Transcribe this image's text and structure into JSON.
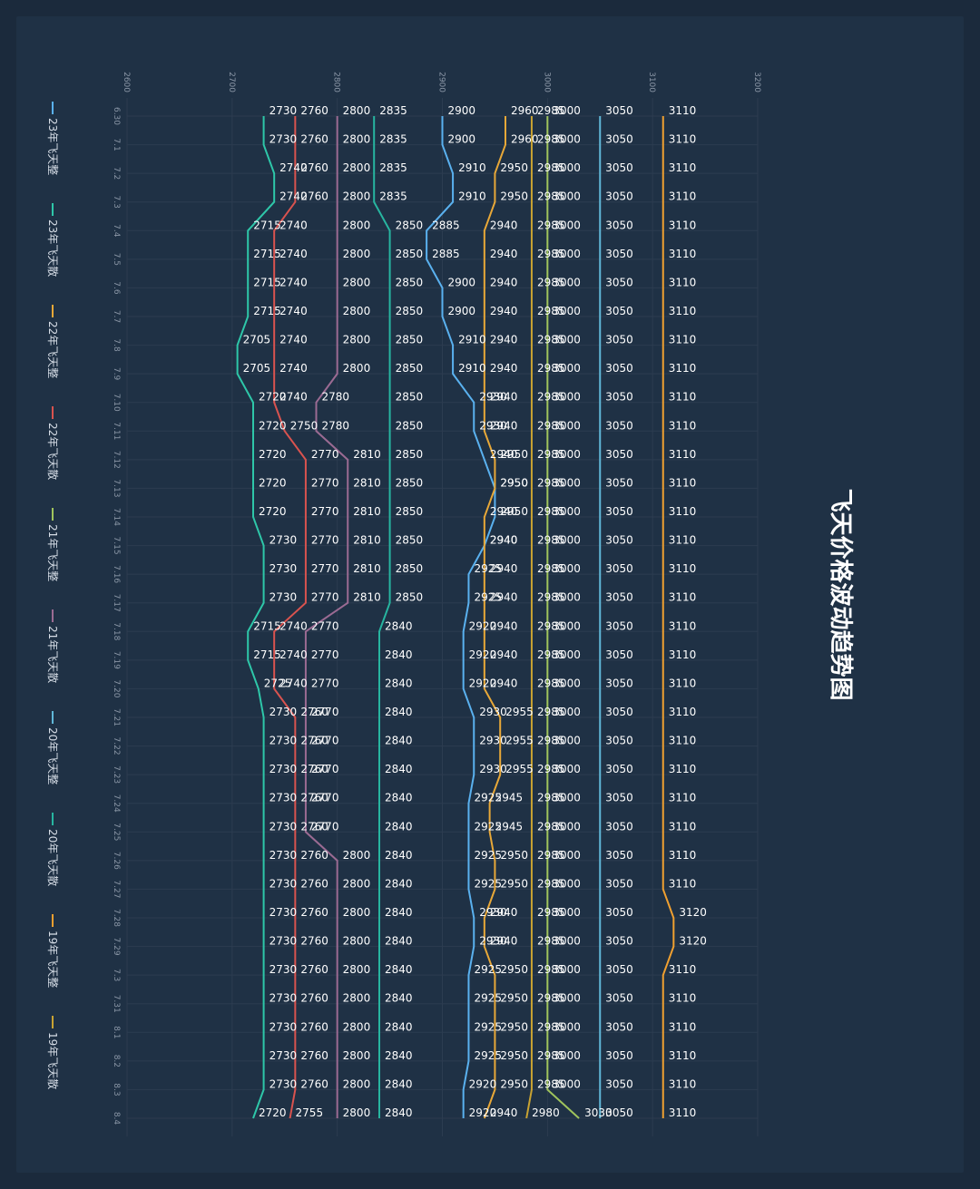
{
  "chart_data": {
    "type": "line",
    "title": "飞天价格波动趋势图",
    "x": [
      "6.30",
      "7.1",
      "7.2",
      "7.3",
      "7.4",
      "7.5",
      "7.6",
      "7.7",
      "7.8",
      "7.9",
      "7.10",
      "7.11",
      "7.12",
      "7.13",
      "7.14",
      "7.15",
      "7.16",
      "7.17",
      "7.18",
      "7.19",
      "7.20",
      "7.21",
      "7.22",
      "7.23",
      "7.24",
      "7.25",
      "7.26",
      "7.27",
      "7.28",
      "7.29",
      "7.3",
      "7.31",
      "8.1",
      "8.2",
      "8.3",
      "8.4"
    ],
    "ylim": [
      2600,
      3200
    ],
    "yticks": [
      2600,
      2700,
      2800,
      2900,
      3000,
      3100,
      3200
    ],
    "grid": true,
    "legend_position": "bottom",
    "series": [
      {
        "name": "23年飞天整",
        "color": "#5ab1ef",
        "values": [
          2900,
          2900,
          2910,
          2910,
          2885,
          2885,
          2900,
          2900,
          2910,
          2910,
          2930,
          2930,
          2940,
          2950,
          2950,
          2940,
          2925,
          2925,
          2920,
          2920,
          2920,
          2930,
          2930,
          2930,
          2925,
          2925,
          2925,
          2925,
          2930,
          2930,
          2925,
          2925,
          2925,
          2925,
          2920,
          2920
        ]
      },
      {
        "name": "23年飞天散",
        "color": "#2ec7a9",
        "values": [
          2730,
          2730,
          2740,
          2740,
          2715,
          2715,
          2715,
          2715,
          2705,
          2705,
          2720,
          2720,
          2720,
          2720,
          2720,
          2730,
          2730,
          2730,
          2715,
          2715,
          2725,
          2730,
          2730,
          2730,
          2730,
          2730,
          2730,
          2730,
          2730,
          2730,
          2730,
          2730,
          2730,
          2730,
          2730,
          2720
        ]
      },
      {
        "name": "22年飞天整",
        "color": "#e8a838",
        "values": [
          2960,
          2960,
          2950,
          2950,
          2940,
          2940,
          2940,
          2940,
          2940,
          2940,
          2940,
          2940,
          2950,
          2950,
          2940,
          2940,
          2940,
          2940,
          2940,
          2940,
          2940,
          2955,
          2955,
          2955,
          2945,
          2945,
          2950,
          2950,
          2940,
          2940,
          2950,
          2950,
          2950,
          2950,
          2950,
          2940
        ]
      },
      {
        "name": "22年飞天散",
        "color": "#d9534f",
        "values": [
          2760,
          2760,
          2760,
          2760,
          2740,
          2740,
          2740,
          2740,
          2740,
          2740,
          2740,
          2750,
          2770,
          2770,
          2770,
          2770,
          2770,
          2770,
          2740,
          2740,
          2740,
          2760,
          2760,
          2760,
          2760,
          2760,
          2760,
          2760,
          2760,
          2760,
          2760,
          2760,
          2760,
          2760,
          2760,
          2755
        ]
      },
      {
        "name": "21年飞天整",
        "color": "#a0c45c",
        "values": [
          3000,
          3000,
          3000,
          3000,
          3000,
          3000,
          3000,
          3000,
          3000,
          3000,
          3000,
          3000,
          3000,
          3000,
          3000,
          3000,
          3000,
          3000,
          3000,
          3000,
          3000,
          3000,
          3000,
          3000,
          3000,
          3000,
          3000,
          3000,
          3000,
          3000,
          3000,
          3000,
          3000,
          3000,
          3000,
          3030
        ]
      },
      {
        "name": "21年飞天散",
        "color": "#9b6b93",
        "values": [
          2800,
          2800,
          2800,
          2800,
          2800,
          2800,
          2800,
          2800,
          2800,
          2800,
          2780,
          2780,
          2810,
          2810,
          2810,
          2810,
          2810,
          2810,
          2770,
          2770,
          2770,
          2770,
          2770,
          2770,
          2770,
          2770,
          2800,
          2800,
          2800,
          2800,
          2800,
          2800,
          2800,
          2800,
          2800,
          2800
        ]
      },
      {
        "name": "20年飞天整",
        "color": "#60b8d8",
        "values": [
          3050,
          3050,
          3050,
          3050,
          3050,
          3050,
          3050,
          3050,
          3050,
          3050,
          3050,
          3050,
          3050,
          3050,
          3050,
          3050,
          3050,
          3050,
          3050,
          3050,
          3050,
          3050,
          3050,
          3050,
          3050,
          3050,
          3050,
          3050,
          3050,
          3050,
          3050,
          3050,
          3050,
          3050,
          3050,
          3050
        ]
      },
      {
        "name": "20年飞天散",
        "color": "#27b5a0",
        "values": [
          2835,
          2835,
          2835,
          2835,
          2850,
          2850,
          2850,
          2850,
          2850,
          2850,
          2850,
          2850,
          2850,
          2850,
          2850,
          2850,
          2850,
          2850,
          2840,
          2840,
          2840,
          2840,
          2840,
          2840,
          2840,
          2840,
          2840,
          2840,
          2840,
          2840,
          2840,
          2840,
          2840,
          2840,
          2840,
          2840
        ]
      },
      {
        "name": "19年飞天整",
        "color": "#f0a030",
        "values": [
          3110,
          3110,
          3110,
          3110,
          3110,
          3110,
          3110,
          3110,
          3110,
          3110,
          3110,
          3110,
          3110,
          3110,
          3110,
          3110,
          3110,
          3110,
          3110,
          3110,
          3110,
          3110,
          3110,
          3110,
          3110,
          3110,
          3110,
          3110,
          3120,
          3120,
          3110,
          3110,
          3110,
          3110,
          3110,
          3110
        ]
      },
      {
        "name": "19年飞天散",
        "color": "#c9a332",
        "values": [
          2985,
          2985,
          2985,
          2985,
          2985,
          2985,
          2985,
          2985,
          2985,
          2985,
          2985,
          2985,
          2985,
          2985,
          2985,
          2985,
          2985,
          2985,
          2985,
          2985,
          2985,
          2985,
          2985,
          2985,
          2985,
          2985,
          2985,
          2985,
          2985,
          2985,
          2985,
          2985,
          2985,
          2985,
          2985,
          2980
        ]
      }
    ]
  }
}
